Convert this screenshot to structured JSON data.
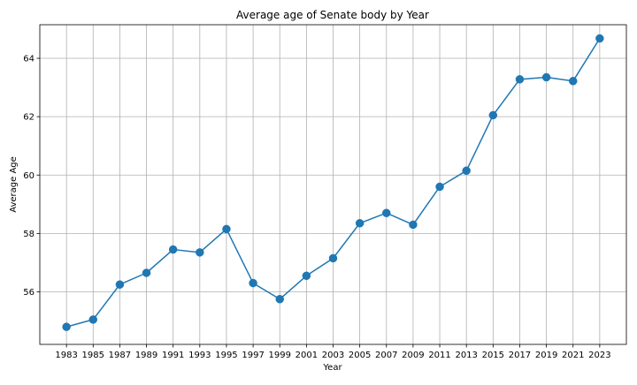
{
  "chart_data": {
    "type": "line",
    "title": "Average age of Senate body by Year",
    "xlabel": "Year",
    "ylabel": "Average Age",
    "x": [
      1983,
      1985,
      1987,
      1989,
      1991,
      1993,
      1995,
      1997,
      1999,
      2001,
      2003,
      2005,
      2007,
      2009,
      2011,
      2013,
      2015,
      2017,
      2019,
      2021,
      2023
    ],
    "x_tick_labels": [
      "1983",
      "1985",
      "1987",
      "1989",
      "1991",
      "1993",
      "1995",
      "1997",
      "1999",
      "2001",
      "2003",
      "2005",
      "2007",
      "2009",
      "2011",
      "2013",
      "2015",
      "2017",
      "2019",
      "2021",
      "2023"
    ],
    "series": [
      {
        "values": [
          54.8,
          55.05,
          56.25,
          56.65,
          57.45,
          57.35,
          58.15,
          56.3,
          55.75,
          56.55,
          57.15,
          58.35,
          58.7,
          58.3,
          59.6,
          60.15,
          62.05,
          63.28,
          63.35,
          63.22,
          64.68
        ],
        "color": "#1f77b4",
        "marker": "circle"
      }
    ],
    "y_ticks": [
      56,
      58,
      60,
      62,
      64
    ],
    "y_tick_labels": [
      "56",
      "58",
      "60",
      "62",
      "64"
    ],
    "xlim": [
      1981.0,
      2025.0
    ],
    "ylim": [
      54.2,
      65.15
    ],
    "grid": true,
    "colors": {
      "line": "#1f77b4",
      "grid": "#b0b0b0",
      "axes": "#000000"
    }
  }
}
